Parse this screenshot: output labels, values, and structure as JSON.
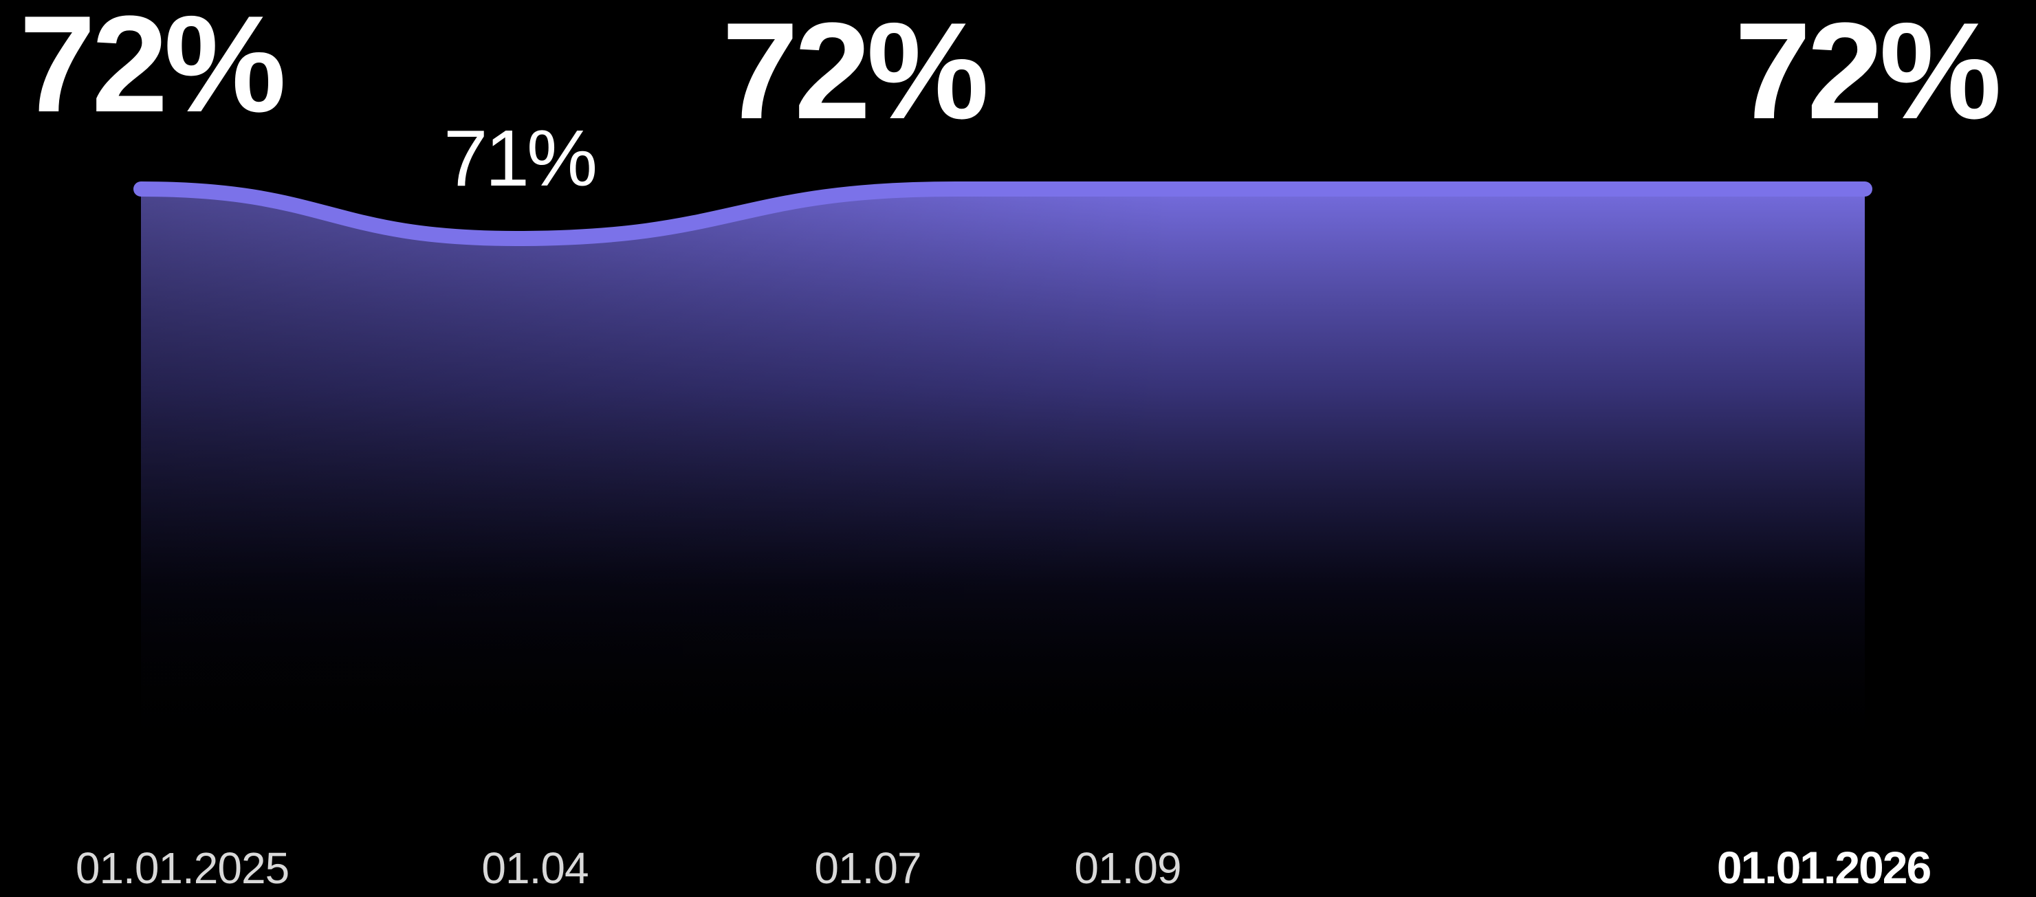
{
  "chart_data": {
    "type": "area",
    "x": [
      "01.01.2025",
      "01.04",
      "01.07",
      "01.09",
      "01.01.2026"
    ],
    "values": [
      72,
      71,
      72,
      72,
      72
    ],
    "x_tick_labels": [
      "01.01.2025",
      "01.04",
      "01.07",
      "01.09",
      "01.01.2026"
    ],
    "value_labels": [
      {
        "x": "01.01.2025",
        "text": "72%",
        "size": "large"
      },
      {
        "x": "01.04",
        "text": "71%",
        "size": "small"
      },
      {
        "x": "01.07",
        "text": "72%",
        "size": "large"
      },
      {
        "x": "01.01.2026",
        "text": "72%",
        "size": "large"
      }
    ],
    "highlighted_tick": "01.01.2026",
    "title": "",
    "xlabel": "",
    "ylabel": "",
    "grid": false,
    "legend": "none",
    "colors": {
      "background": "#000000",
      "line": "#7b72e9",
      "fill_top": "#7b72e9",
      "fill_bottom": "#000000",
      "label": "#ffffff",
      "tick": "#d9d9d9"
    }
  }
}
